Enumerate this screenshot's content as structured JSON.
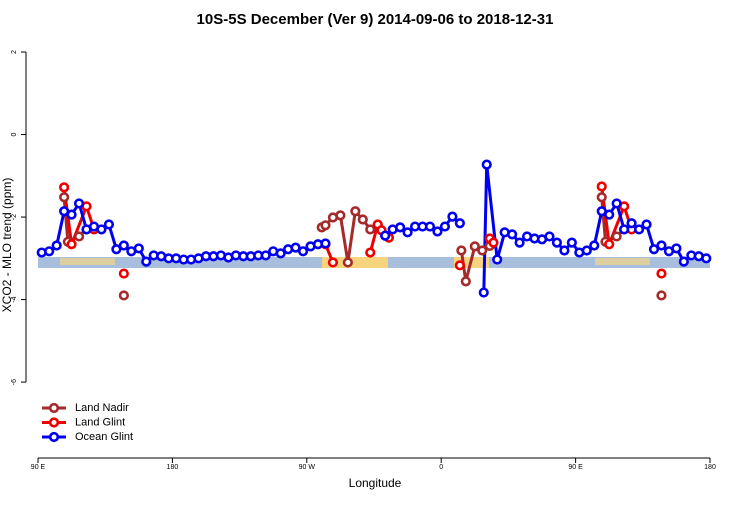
{
  "chart_data": {
    "type": "line",
    "title": "10S-5S December (Ver 9)   2014-09-06 to 2018-12-31",
    "x_label": "Longitude",
    "y_label": "XCO2 - MLO trend (ppm)",
    "xlim": [
      90,
      540
    ],
    "xticks": [
      {
        "value": 90,
        "label": "90 E"
      },
      {
        "value": 180,
        "label": "180"
      },
      {
        "value": 270,
        "label": "90 W"
      },
      {
        "value": 360,
        "label": "0"
      },
      {
        "value": 450,
        "label": "90 E"
      },
      {
        "value": 540,
        "label": "180"
      }
    ],
    "ylim": [
      -7.84,
      2.34
    ],
    "yticks": [
      -6,
      -4,
      -2,
      0,
      2
    ],
    "legend": "lower left",
    "series": [
      {
        "name": "Land Nadir",
        "color": "#a52a2a",
        "x": [
          107.5,
          110,
          117.5,
          122.5,
          135,
          147.5,
          210,
          280,
          282.5,
          287.5,
          292.5,
          297.5,
          302.5,
          307.5,
          312.5,
          317.5,
          322.5,
          350,
          373.5,
          376.5,
          382.5,
          387.5,
          392.5,
          430,
          467.5,
          470,
          477.5,
          482.5,
          495,
          507.5
        ],
        "values": [
          -1.52,
          -2.6,
          -2.47,
          -2.3,
          null,
          -3.9,
          null,
          -2.25,
          -2.2,
          -2.01,
          -1.96,
          -3.1,
          -1.86,
          -2.06,
          -2.3,
          -2.2,
          -2.45,
          null,
          -2.81,
          -3.56,
          -2.71,
          -2.81,
          -2.7,
          null,
          -1.52,
          -2.6,
          -2.47,
          -2.3,
          null,
          -3.9
        ]
      },
      {
        "name": "Land Glint",
        "color": "#ee0000",
        "x": [
          107.5,
          112.5,
          122.5,
          127.5,
          135,
          147.5,
          210,
          282.5,
          287.5,
          300,
          312.5,
          317.5,
          320,
          325,
          350,
          372.5,
          380,
          392.5,
          395,
          430,
          467.5,
          472.5,
          482.5,
          487.5,
          495,
          507.5
        ],
        "values": [
          -1.28,
          -2.66,
          -1.74,
          -2.3,
          null,
          -3.37,
          null,
          -2.66,
          -3.1,
          null,
          -2.86,
          -2.18,
          -2.32,
          -2.5,
          null,
          -3.17,
          null,
          -2.52,
          -2.62,
          null,
          -1.26,
          -2.66,
          -1.74,
          -2.3,
          null,
          -3.37
        ]
      },
      {
        "name": "Ocean Glint",
        "color": "#0000ee",
        "x": [
          92.5,
          97.5,
          102.5,
          107.5,
          112.5,
          117.5,
          122.5,
          127.5,
          132.5,
          137.5,
          142.5,
          147.5,
          152.5,
          157.5,
          162.5,
          167.5,
          172.5,
          177.5,
          182.5,
          187.5,
          192.5,
          197.5,
          202.5,
          207.5,
          212.5,
          217.5,
          222.5,
          227.5,
          232.5,
          237.5,
          242.5,
          247.5,
          252.5,
          257.5,
          262.5,
          267.5,
          272.5,
          277.5,
          282.5,
          300,
          322.5,
          327.5,
          332.5,
          337.5,
          342.5,
          347.5,
          352.5,
          357.5,
          362.5,
          367.5,
          372.5,
          380,
          388.5,
          390.5,
          397.5,
          402.5,
          407.5,
          412.5,
          417.5,
          422.5,
          427.5,
          432.5,
          437.5,
          442.5,
          447.5,
          452.5,
          457.5,
          462.5,
          467.5,
          472.5,
          477.5,
          482.5,
          487.5,
          492.5,
          497.5,
          502.5,
          507.5,
          512.5,
          517.5,
          522.5,
          527.5,
          532.5,
          537.5
        ],
        "values": [
          -2.86,
          -2.83,
          -2.69,
          -1.86,
          -1.94,
          -1.67,
          -2.3,
          -2.23,
          -2.3,
          -2.18,
          -2.78,
          -2.69,
          -2.83,
          -2.76,
          -3.08,
          -2.93,
          -2.95,
          -3.0,
          -3.0,
          -3.03,
          -3.03,
          -3.0,
          -2.95,
          -2.95,
          -2.93,
          -2.98,
          -2.93,
          -2.95,
          -2.95,
          -2.93,
          -2.93,
          -2.83,
          -2.88,
          -2.78,
          -2.74,
          -2.83,
          -2.71,
          -2.66,
          -2.64,
          null,
          -2.45,
          -2.3,
          -2.25,
          -2.37,
          -2.23,
          -2.23,
          -2.23,
          -2.35,
          -2.23,
          -1.99,
          -2.15,
          null,
          -3.83,
          -0.73,
          -3.03,
          -2.37,
          -2.42,
          -2.62,
          -2.47,
          -2.52,
          -2.54,
          -2.47,
          -2.62,
          -2.81,
          -2.62,
          -2.86,
          -2.81,
          -2.69,
          -1.86,
          -1.94,
          -1.67,
          -2.3,
          -2.15,
          -2.3,
          -2.18,
          -2.78,
          -2.69,
          -2.83,
          -2.76,
          -3.08,
          -2.93,
          -2.95,
          -3.0
        ]
      }
    ]
  }
}
